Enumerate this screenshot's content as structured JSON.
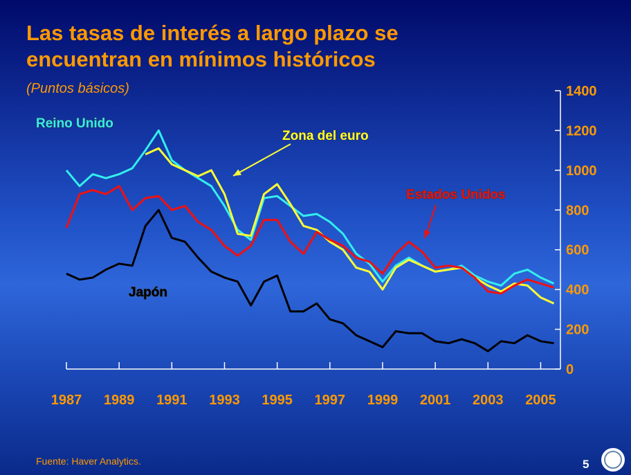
{
  "chart_data": {
    "type": "line",
    "title": "Las tasas de interés a largo plazo se encuentran en mínimos históricos",
    "subtitle": "(Puntos básicos)",
    "source": "Fuente: Haver Analytics.",
    "page_number": "5",
    "x": [
      1987,
      1987.5,
      1988,
      1988.5,
      1989,
      1989.5,
      1990,
      1990.5,
      1991,
      1991.5,
      1992,
      1992.5,
      1993,
      1993.5,
      1994,
      1994.5,
      1995,
      1995.5,
      1996,
      1996.5,
      1997,
      1997.5,
      1998,
      1998.5,
      1999,
      1999.5,
      2000,
      2000.5,
      2001,
      2001.5,
      2002,
      2002.5,
      2003,
      2003.5,
      2004,
      2004.5,
      2005,
      2005.5
    ],
    "series": [
      {
        "name": "Reino Unido",
        "color": "#33eeee",
        "values": [
          1000,
          920,
          980,
          960,
          980,
          1010,
          1100,
          1200,
          1050,
          1000,
          960,
          920,
          820,
          700,
          650,
          860,
          870,
          820,
          770,
          780,
          740,
          680,
          580,
          530,
          440,
          520,
          560,
          520,
          490,
          500,
          520,
          470,
          440,
          420,
          480,
          500,
          460,
          430
        ]
      },
      {
        "name": "Zona del euro",
        "color": "#ffff33",
        "values": [
          null,
          null,
          null,
          null,
          null,
          null,
          1080,
          1110,
          1030,
          1000,
          970,
          1000,
          880,
          680,
          670,
          880,
          930,
          830,
          720,
          700,
          640,
          600,
          510,
          490,
          400,
          510,
          550,
          520,
          490,
          500,
          510,
          460,
          420,
          390,
          430,
          420,
          360,
          330
        ]
      },
      {
        "name": "Estados Unidos",
        "color": "#ee1111",
        "values": [
          710,
          880,
          900,
          880,
          920,
          800,
          860,
          870,
          800,
          820,
          740,
          700,
          620,
          570,
          620,
          750,
          750,
          640,
          580,
          690,
          650,
          620,
          560,
          540,
          480,
          580,
          640,
          590,
          510,
          520,
          510,
          460,
          390,
          380,
          420,
          450,
          430,
          410
        ]
      },
      {
        "name": "Japón",
        "color": "#000000",
        "values": [
          480,
          450,
          460,
          500,
          530,
          520,
          720,
          800,
          660,
          640,
          560,
          490,
          460,
          440,
          320,
          440,
          470,
          290,
          290,
          330,
          250,
          230,
          170,
          140,
          110,
          190,
          180,
          180,
          140,
          130,
          150,
          130,
          90,
          140,
          130,
          170,
          140,
          130
        ]
      }
    ],
    "xlim": [
      1987,
      2005.75
    ],
    "xticks": [
      1987,
      1989,
      1991,
      1993,
      1995,
      1997,
      1999,
      2001,
      2003,
      2005
    ],
    "ylim": [
      0,
      1400
    ],
    "yticks": [
      0,
      200,
      400,
      600,
      800,
      1000,
      1200,
      1400
    ]
  }
}
